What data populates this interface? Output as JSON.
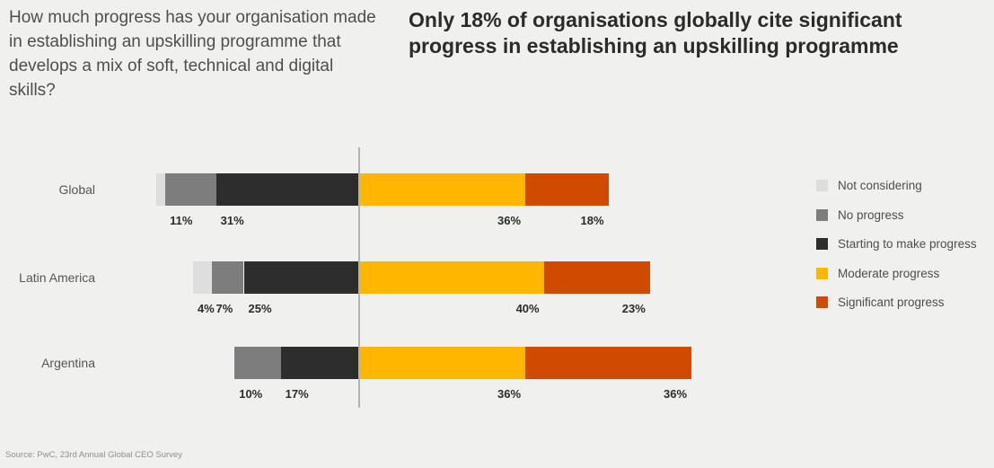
{
  "page": {
    "background": "#f0f0ee"
  },
  "header": {
    "question": "How much progress has your organisation made in establishing an upskilling programme that develops a mix of soft, technical and digital skills?",
    "title": "Only 18% of organisations globally cite significant progress in establishing an upskilling programme"
  },
  "footer": {
    "source": "Source: PwC, 23rd Annual Global CEO Survey"
  },
  "colors": {
    "background": "#f0f0ee",
    "baseline": "#b2b2b2",
    "data_label": "#2b2b2b",
    "row_label": "#565656",
    "not_considering": "#dedede",
    "no_progress": "#7d7d7d",
    "starting_to_make_progress": "#2d2d2d",
    "moderate_progress": "#ffb600",
    "significant_progress": "#d04a02"
  },
  "chart_data": {
    "type": "bar",
    "subtype": "horizontal-diverging-stacked",
    "unit": "percent",
    "title": "Only 18% of organisations globally cite significant progress in establishing an upskilling programme",
    "categories": [
      "Global",
      "Latin America",
      "Argentina"
    ],
    "series": [
      {
        "name": "Not considering",
        "side": "left",
        "color": "#dedede",
        "values": [
          2,
          4,
          0
        ],
        "labels": [
          "",
          "4%",
          ""
        ]
      },
      {
        "name": "No progress",
        "side": "left",
        "color": "#7d7d7d",
        "values": [
          11,
          7,
          10
        ],
        "labels": [
          "11%",
          "7%",
          "10%"
        ]
      },
      {
        "name": "Starting to make progress",
        "side": "left",
        "color": "#2d2d2d",
        "values": [
          31,
          25,
          17
        ],
        "labels": [
          "31%",
          "25%",
          "17%"
        ]
      },
      {
        "name": "Moderate progress",
        "side": "right",
        "color": "#ffb600",
        "values": [
          36,
          40,
          36
        ],
        "labels": [
          "36%",
          "40%",
          "36%"
        ]
      },
      {
        "name": "Significant progress",
        "side": "right",
        "color": "#d04a02",
        "values": [
          18,
          23,
          36
        ],
        "labels": [
          "18%",
          "23%",
          "36%"
        ]
      }
    ],
    "legend": [
      "Not considering",
      "No progress",
      "Starting to make progress",
      "Moderate progress",
      "Significant progress"
    ],
    "legend_position": "right",
    "grid": false,
    "axis_note": "vertical baseline separates left segments (Not considering, No progress, Starting to make progress) from right segments (Moderate progress, Significant progress)"
  }
}
